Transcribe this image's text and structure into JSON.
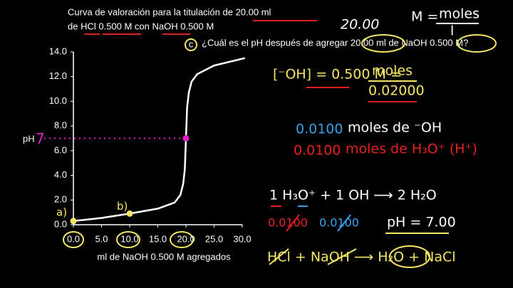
{
  "chart_data": {
    "type": "line",
    "title": [
      "Curva de valoración para la titulación de 20.00 ml",
      "de HCl 0.500 M con NaOH 0.500 M"
    ],
    "xlabel": "ml de NaOH 0.500 M agregados",
    "ylabel": "pH",
    "xlim": [
      0,
      30
    ],
    "ylim": [
      0,
      14
    ],
    "xticks": [
      {
        "value": 0,
        "label": "0.0"
      },
      {
        "value": 5,
        "label": "5.0"
      },
      {
        "value": 10,
        "label": "10.0"
      },
      {
        "value": 15,
        "label": "15.0"
      },
      {
        "value": 20,
        "label": "20.0"
      },
      {
        "value": 25,
        "label": "25.0"
      },
      {
        "value": 30,
        "label": "30.0"
      }
    ],
    "yticks": [
      {
        "value": 0,
        "label": "0.0"
      },
      {
        "value": 2,
        "label": "2.0"
      },
      {
        "value": 4,
        "label": "4.0"
      },
      {
        "value": 6,
        "label": "6.0"
      },
      {
        "value": 8,
        "label": "8.0"
      },
      {
        "value": 10,
        "label": "10.0"
      },
      {
        "value": 12,
        "label": "12.0"
      },
      {
        "value": 14,
        "label": "14.0"
      }
    ],
    "grid": false,
    "series": [
      {
        "name": "pH",
        "color": "#ffffff",
        "x": [
          0,
          2,
          5,
          10,
          15,
          18,
          19,
          19.5,
          19.8,
          20,
          20.2,
          20.5,
          21,
          22,
          25,
          30.5
        ],
        "values": [
          0.3,
          0.4,
          0.55,
          0.9,
          1.3,
          1.8,
          2.4,
          3.3,
          4.5,
          7,
          9.5,
          10.7,
          11.6,
          12.2,
          12.9,
          13.5
        ]
      }
    ],
    "markers": [
      {
        "x": 0,
        "y": 0.3,
        "label": "a)",
        "color": "#f5e663"
      },
      {
        "x": 10,
        "y": 0.9,
        "label": "b)",
        "color": "#f5e663"
      },
      {
        "x": 20,
        "y": 7,
        "label": "7",
        "color": "#e020c8"
      }
    ]
  },
  "question": {
    "letter": "c",
    "text": "¿Cuál es el pH después de agregar 20.00 ml de NaOH 0.500 M?"
  },
  "notes": {
    "volume": "20.00",
    "molarity": [
      "M =",
      "moles",
      "l"
    ],
    "concentration": [
      "[⁻OH] = 0.500 M =",
      "moles",
      "0.02000"
    ],
    "moles_oh": [
      "0.0100",
      "moles de ⁻OH"
    ],
    "moles_h3o": [
      "0.0100",
      "moles de H₃O⁺ (H⁺)"
    ],
    "reaction": "1 H₃O⁺ + 1 OH ⟶ 2 H₂O",
    "amounts": [
      "0.0100",
      "0.0100"
    ],
    "result": "pH = 7.00",
    "equation": "HCl + NaOH ⟶ H₂O + NaCl"
  }
}
